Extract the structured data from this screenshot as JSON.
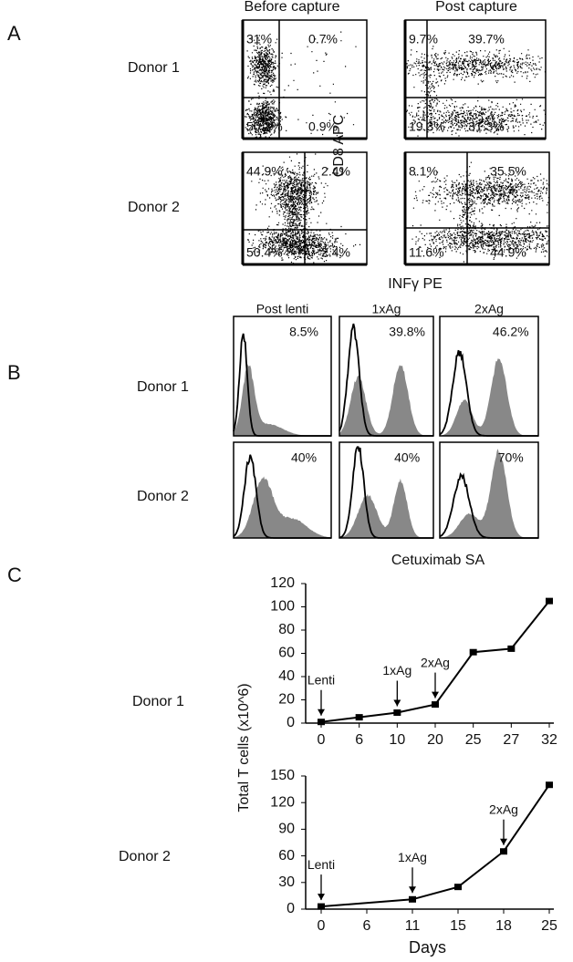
{
  "panel_a": {
    "label": "A",
    "columns": [
      "Before capture",
      "Post capture"
    ],
    "rows": [
      "Donor 1",
      "Donor 2"
    ],
    "y_label": "CD8 APC",
    "x_label": "INFγ PE",
    "plots": [
      [
        [
          "31%",
          "0.7%",
          "50.3%",
          "0.9%"
        ],
        [
          "9.7%",
          "39.7%",
          "19.3%",
          "31.3%"
        ]
      ],
      [
        [
          "44.9%",
          "2.4%",
          "50.4%",
          "2.4%"
        ],
        [
          "8.1%",
          "35.5%",
          "11.6%",
          "44.9%"
        ]
      ]
    ]
  },
  "panel_b": {
    "label": "B",
    "columns": [
      "Post lenti",
      "1xAg",
      "2xAg"
    ],
    "rows": [
      "Donor 1",
      "Donor 2"
    ],
    "percentages": [
      [
        "8.5%",
        "39.8%",
        "46.2%"
      ],
      [
        "40%",
        "40%",
        "70%"
      ]
    ],
    "x_label": "Cetuximab SA"
  },
  "panel_c": {
    "label": "C",
    "y_label": "Total T cells (x10^6)",
    "rows": [
      "Donor 1",
      "Donor 2"
    ]
  },
  "chart_data": [
    {
      "type": "line",
      "xticks": [
        0,
        6,
        10,
        20,
        25,
        27,
        32
      ],
      "x": [
        0,
        6,
        10,
        20,
        25,
        27,
        32
      ],
      "values": [
        1,
        5,
        9,
        16,
        61,
        64,
        105
      ],
      "color": "#000000",
      "ylim": [
        0,
        120
      ],
      "yticks": [
        0,
        20,
        40,
        60,
        80,
        100,
        120
      ],
      "annotations": [
        {
          "text": "Lenti",
          "x": 0
        },
        {
          "text": "1xAg",
          "x": 10
        },
        {
          "text": "2xAg",
          "x": 20
        }
      ]
    },
    {
      "type": "line",
      "xticks": [
        0,
        6,
        11,
        15,
        18,
        25
      ],
      "x": [
        0,
        11,
        15,
        18,
        25
      ],
      "values": [
        3,
        11,
        25,
        65,
        140
      ],
      "color": "#000000",
      "ylim": [
        0,
        150
      ],
      "yticks": [
        0,
        30,
        60,
        90,
        120,
        150
      ],
      "xlabel": "Days",
      "annotations": [
        {
          "text": "Lenti",
          "x": 0
        },
        {
          "text": "1xAg",
          "x": 11
        },
        {
          "text": "2xAg",
          "x": 18
        }
      ]
    }
  ]
}
